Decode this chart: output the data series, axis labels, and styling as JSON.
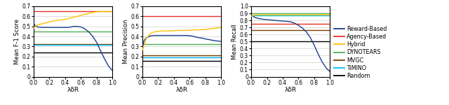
{
  "legend_labels": [
    "Reward-Based",
    "Agency-Based",
    "Hybrid",
    "DYNOTEARS",
    "MVGC",
    "TiMINO",
    "Random"
  ],
  "colors": {
    "Reward-Based": "#1a3d8f",
    "Agency-Based": "#e8312a",
    "Hybrid": "#ffc000",
    "DYNOTEARS": "#4caf50",
    "MVGC": "#7b3f00",
    "TiMINO": "#00bfff",
    "Random": "#000000"
  },
  "f1": {
    "x_curve": [
      0.0,
      0.02,
      0.05,
      0.1,
      0.15,
      0.2,
      0.25,
      0.3,
      0.35,
      0.4,
      0.45,
      0.5,
      0.55,
      0.6,
      0.65,
      0.7,
      0.75,
      0.8,
      0.85,
      0.9,
      0.95,
      1.0
    ],
    "Reward-Based": [
      0.535,
      0.505,
      0.495,
      0.49,
      0.49,
      0.49,
      0.49,
      0.49,
      0.49,
      0.49,
      0.49,
      0.5,
      0.5,
      0.495,
      0.475,
      0.445,
      0.4,
      0.34,
      0.255,
      0.175,
      0.105,
      0.06
    ],
    "Agency-Based": 0.648,
    "Hybrid": [
      0.48,
      0.5,
      0.515,
      0.525,
      0.535,
      0.545,
      0.555,
      0.56,
      0.565,
      0.57,
      0.58,
      0.59,
      0.6,
      0.61,
      0.62,
      0.63,
      0.64,
      0.645,
      0.648,
      0.648,
      0.648,
      0.648
    ],
    "DYNOTEARS": 0.452,
    "MVGC": 0.323,
    "TiMINO": 0.32,
    "Random": 0.24,
    "ylim": [
      0,
      0.7
    ],
    "yticks": [
      0,
      0.1,
      0.2,
      0.3,
      0.4,
      0.5,
      0.6,
      0.7
    ],
    "ylabel": "Mean F-1 Score"
  },
  "precision": {
    "x_curve": [
      0.0,
      0.02,
      0.05,
      0.1,
      0.15,
      0.2,
      0.25,
      0.3,
      0.35,
      0.4,
      0.45,
      0.5,
      0.55,
      0.6,
      0.65,
      0.7,
      0.75,
      0.8,
      0.85,
      0.9,
      0.95,
      1.0
    ],
    "Reward-Based": [
      0.275,
      0.36,
      0.385,
      0.405,
      0.41,
      0.41,
      0.41,
      0.41,
      0.41,
      0.41,
      0.41,
      0.41,
      0.41,
      0.408,
      0.4,
      0.39,
      0.385,
      0.375,
      0.368,
      0.36,
      0.355,
      0.35
    ],
    "Agency-Based": 0.6,
    "Hybrid": [
      0.265,
      0.31,
      0.38,
      0.43,
      0.445,
      0.45,
      0.455,
      0.455,
      0.455,
      0.458,
      0.46,
      0.46,
      0.46,
      0.462,
      0.465,
      0.465,
      0.468,
      0.47,
      0.475,
      0.48,
      0.485,
      0.49
    ],
    "DYNOTEARS": 0.325,
    "MVGC": 0.21,
    "TiMINO": 0.195,
    "Random": 0.16,
    "ylim": [
      0,
      0.7
    ],
    "yticks": [
      0,
      0.1,
      0.2,
      0.3,
      0.4,
      0.5,
      0.6,
      0.7
    ],
    "ylabel": "Mean Precision"
  },
  "recall": {
    "x_curve": [
      0.0,
      0.02,
      0.05,
      0.1,
      0.15,
      0.2,
      0.25,
      0.3,
      0.35,
      0.4,
      0.45,
      0.5,
      0.55,
      0.6,
      0.65,
      0.7,
      0.75,
      0.8,
      0.85,
      0.9,
      0.95,
      1.0
    ],
    "Reward-Based": [
      0.875,
      0.86,
      0.84,
      0.825,
      0.815,
      0.81,
      0.805,
      0.8,
      0.795,
      0.79,
      0.787,
      0.78,
      0.76,
      0.73,
      0.69,
      0.635,
      0.555,
      0.445,
      0.32,
      0.21,
      0.125,
      0.07
    ],
    "Agency-Based": 0.748,
    "Hybrid": [
      0.855,
      0.87,
      0.875,
      0.878,
      0.878,
      0.878,
      0.878,
      0.878,
      0.878,
      0.878,
      0.878,
      0.878,
      0.878,
      0.878,
      0.878,
      0.878,
      0.878,
      0.878,
      0.878,
      0.878,
      0.878,
      0.878
    ],
    "DYNOTEARS": 0.9,
    "MVGC": 0.66,
    "TiMINO": 0.868,
    "Random": 0.5,
    "ylim": [
      0,
      1.0
    ],
    "yticks": [
      0,
      0.1,
      0.2,
      0.3,
      0.4,
      0.5,
      0.6,
      0.7,
      0.8,
      0.9,
      1.0
    ],
    "ylabel": "Mean Recall"
  },
  "xlabel": "λδR",
  "figsize": [
    6.4,
    1.5
  ],
  "dpi": 100
}
